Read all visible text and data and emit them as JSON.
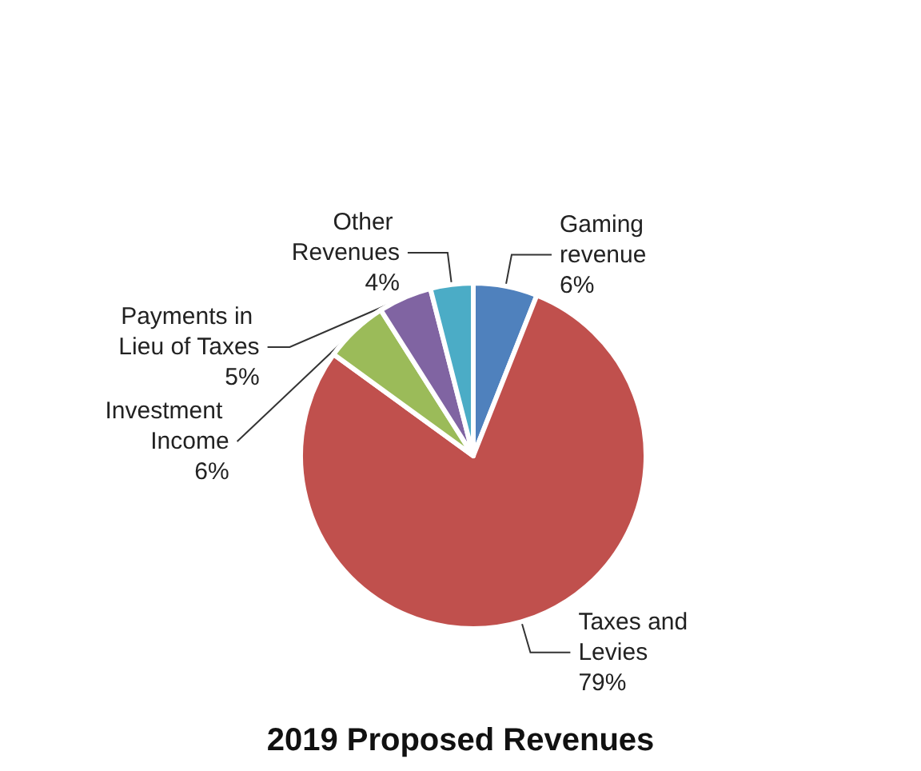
{
  "chart_data": {
    "type": "pie",
    "title": "2019 Proposed Revenues",
    "categories": [
      "Gaming revenue",
      "Taxes and Levies",
      "Investment Income",
      "Payments in Lieu of Taxes",
      "Other Revenues"
    ],
    "values": [
      6,
      79,
      6,
      5,
      4
    ],
    "colors": [
      "#4f81bd",
      "#c0504d",
      "#9bbb59",
      "#8064a2",
      "#4bacc6"
    ],
    "value_labels": [
      "6%",
      "79%",
      "6%",
      "5%",
      "4%"
    ]
  }
}
